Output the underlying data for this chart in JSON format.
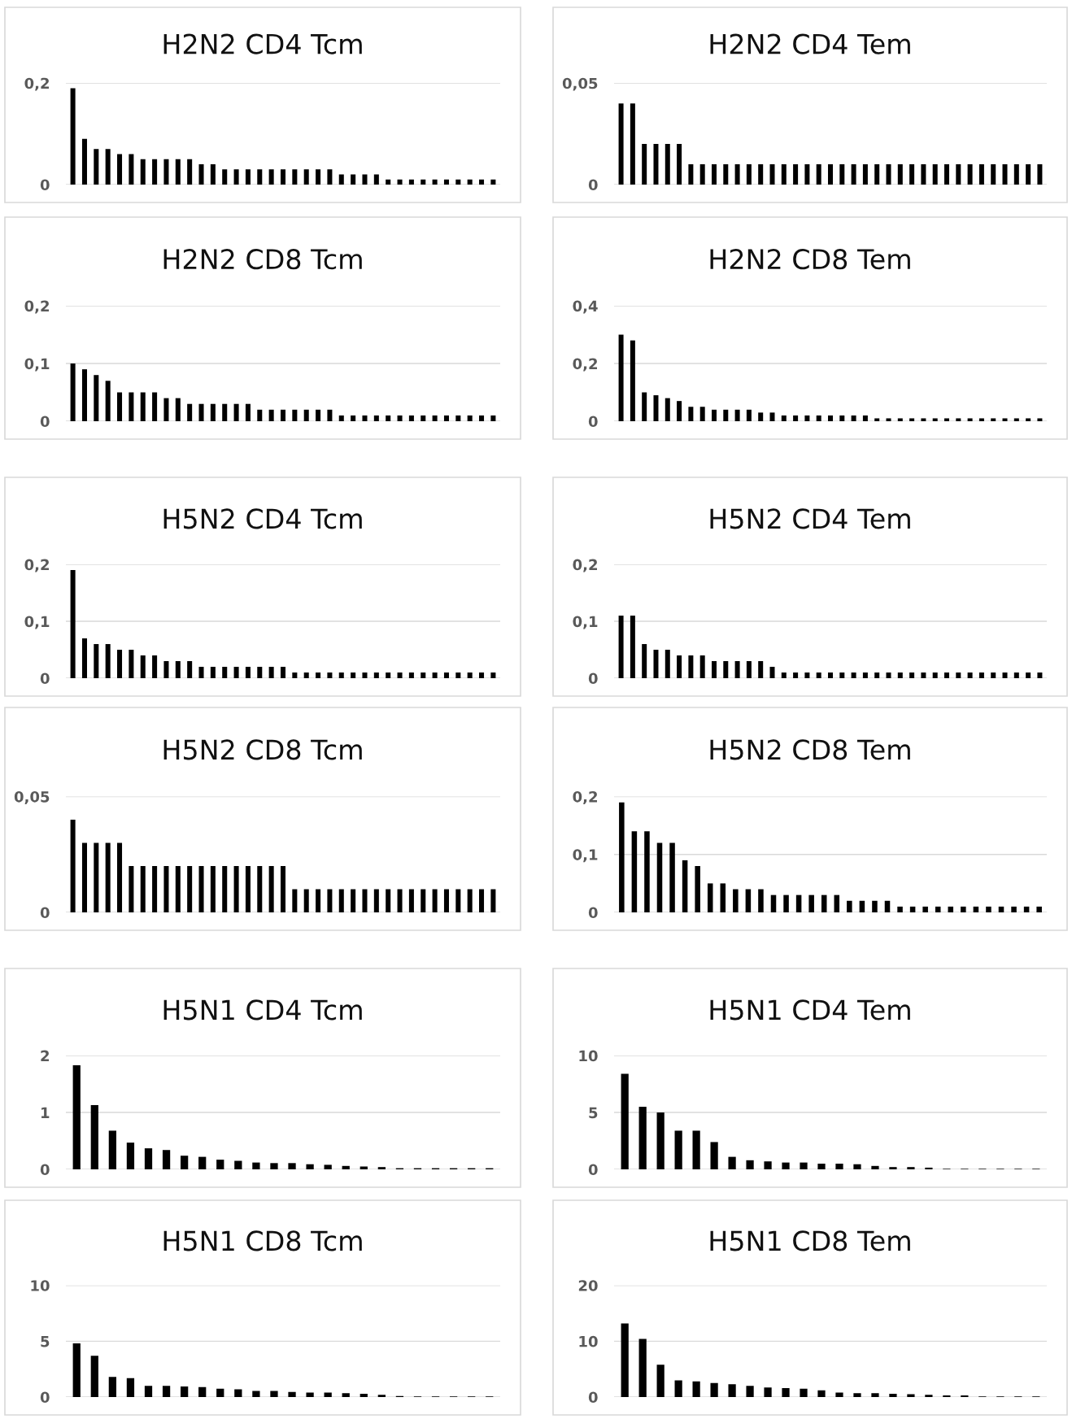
{
  "chart_data": [
    {
      "type": "bar",
      "title": "H2N2 CD4 Tcm",
      "color": "#000000",
      "grid": "y",
      "tick_labels": "y",
      "categories": [
        null,
        null,
        null,
        null,
        null,
        null,
        null,
        null,
        null,
        null,
        null,
        null,
        null,
        null,
        null,
        null,
        null,
        null,
        null,
        null,
        null,
        null,
        null,
        null,
        null,
        null,
        null,
        null,
        null,
        null,
        null,
        null,
        null,
        null,
        null,
        null,
        null
      ],
      "values": [
        0.19,
        0.09,
        0.07,
        0.07,
        0.06,
        0.06,
        0.05,
        0.05,
        0.05,
        0.05,
        0.05,
        0.04,
        0.04,
        0.03,
        0.03,
        0.03,
        0.03,
        0.03,
        0.03,
        0.03,
        0.03,
        0.03,
        0.03,
        0.02,
        0.02,
        0.02,
        0.02,
        0.01,
        0.01,
        0.01,
        0.01,
        0.01,
        0.01,
        0.01,
        0.01,
        0.01,
        0.01
      ],
      "ylim": [
        0,
        0.2
      ],
      "yticks": [
        0,
        {
          "value": 0.2,
          "label": "0,2"
        }
      ]
    },
    {
      "type": "bar",
      "title": "H2N2 CD4 Tem",
      "color": "#000000",
      "grid": "y",
      "tick_labels": "y",
      "categories": [
        null,
        null,
        null,
        null,
        null,
        null,
        null,
        null,
        null,
        null,
        null,
        null,
        null,
        null,
        null,
        null,
        null,
        null,
        null,
        null,
        null,
        null,
        null,
        null,
        null,
        null,
        null,
        null,
        null,
        null,
        null,
        null,
        null,
        null,
        null,
        null,
        null
      ],
      "values": [
        0.04,
        0.04,
        0.02,
        0.02,
        0.02,
        0.02,
        0.01,
        0.01,
        0.01,
        0.01,
        0.01,
        0.01,
        0.01,
        0.01,
        0.01,
        0.01,
        0.01,
        0.01,
        0.01,
        0.01,
        0.01,
        0.01,
        0.01,
        0.01,
        0.01,
        0.01,
        0.01,
        0.01,
        0.01,
        0.01,
        0.01,
        0.01,
        0.01,
        0.01,
        0.01,
        0.01,
        0.01
      ],
      "ylim": [
        0,
        0.05
      ],
      "yticks": [
        0,
        {
          "value": 0.05,
          "label": "0,05"
        }
      ]
    },
    {
      "type": "bar",
      "title": "H2N2 CD8 Tcm",
      "color": "#000000",
      "grid": "y",
      "tick_labels": "y",
      "categories": [
        null,
        null,
        null,
        null,
        null,
        null,
        null,
        null,
        null,
        null,
        null,
        null,
        null,
        null,
        null,
        null,
        null,
        null,
        null,
        null,
        null,
        null,
        null,
        null,
        null,
        null,
        null,
        null,
        null,
        null,
        null,
        null,
        null,
        null,
        null,
        null,
        null
      ],
      "values": [
        0.1,
        0.09,
        0.08,
        0.07,
        0.05,
        0.05,
        0.05,
        0.05,
        0.04,
        0.04,
        0.03,
        0.03,
        0.03,
        0.03,
        0.03,
        0.03,
        0.02,
        0.02,
        0.02,
        0.02,
        0.02,
        0.02,
        0.02,
        0.01,
        0.01,
        0.01,
        0.01,
        0.01,
        0.01,
        0.01,
        0.01,
        0.01,
        0.01,
        0.01,
        0.01,
        0.01,
        0.01
      ],
      "ylim": [
        0,
        0.2
      ],
      "yticks": [
        0,
        {
          "value": 0.1,
          "label": "0,1"
        },
        {
          "value": 0.2,
          "label": "0,2"
        }
      ]
    },
    {
      "type": "bar",
      "title": "H2N2 CD8 Tem",
      "color": "#000000",
      "grid": "y",
      "tick_labels": "y",
      "categories": [
        null,
        null,
        null,
        null,
        null,
        null,
        null,
        null,
        null,
        null,
        null,
        null,
        null,
        null,
        null,
        null,
        null,
        null,
        null,
        null,
        null,
        null,
        null,
        null,
        null,
        null,
        null,
        null,
        null,
        null,
        null,
        null,
        null,
        null,
        null,
        null,
        null
      ],
      "values": [
        0.3,
        0.28,
        0.1,
        0.09,
        0.08,
        0.07,
        0.05,
        0.05,
        0.04,
        0.04,
        0.04,
        0.04,
        0.03,
        0.03,
        0.02,
        0.02,
        0.02,
        0.02,
        0.02,
        0.02,
        0.02,
        0.02,
        0.01,
        0.01,
        0.01,
        0.01,
        0.01,
        0.01,
        0.01,
        0.01,
        0.01,
        0.01,
        0.01,
        0.01,
        0.01,
        0.01,
        0.01
      ],
      "ylim": [
        0,
        0.4
      ],
      "yticks": [
        0,
        {
          "value": 0.2,
          "label": "0,2"
        },
        {
          "value": 0.4,
          "label": "0,4"
        }
      ]
    },
    {
      "type": "bar",
      "title": "H5N2 CD4 Tcm",
      "color": "#000000",
      "grid": "y",
      "tick_labels": "y",
      "categories": [
        null,
        null,
        null,
        null,
        null,
        null,
        null,
        null,
        null,
        null,
        null,
        null,
        null,
        null,
        null,
        null,
        null,
        null,
        null,
        null,
        null,
        null,
        null,
        null,
        null,
        null,
        null,
        null,
        null,
        null,
        null,
        null,
        null,
        null,
        null,
        null,
        null
      ],
      "values": [
        0.19,
        0.07,
        0.06,
        0.06,
        0.05,
        0.05,
        0.04,
        0.04,
        0.03,
        0.03,
        0.03,
        0.02,
        0.02,
        0.02,
        0.02,
        0.02,
        0.02,
        0.02,
        0.02,
        0.01,
        0.01,
        0.01,
        0.01,
        0.01,
        0.01,
        0.01,
        0.01,
        0.01,
        0.01,
        0.01,
        0.01,
        0.01,
        0.01,
        0.01,
        0.01,
        0.01,
        0.01
      ],
      "ylim": [
        0,
        0.2
      ],
      "yticks": [
        0,
        {
          "value": 0.1,
          "label": "0,1"
        },
        {
          "value": 0.2,
          "label": "0,2"
        }
      ]
    },
    {
      "type": "bar",
      "title": "H5N2 CD4 Tem",
      "color": "#000000",
      "grid": "y",
      "tick_labels": "y",
      "categories": [
        null,
        null,
        null,
        null,
        null,
        null,
        null,
        null,
        null,
        null,
        null,
        null,
        null,
        null,
        null,
        null,
        null,
        null,
        null,
        null,
        null,
        null,
        null,
        null,
        null,
        null,
        null,
        null,
        null,
        null,
        null,
        null,
        null,
        null,
        null,
        null,
        null
      ],
      "values": [
        0.11,
        0.11,
        0.06,
        0.05,
        0.05,
        0.04,
        0.04,
        0.04,
        0.03,
        0.03,
        0.03,
        0.03,
        0.03,
        0.02,
        0.01,
        0.01,
        0.01,
        0.01,
        0.01,
        0.01,
        0.01,
        0.01,
        0.01,
        0.01,
        0.01,
        0.01,
        0.01,
        0.01,
        0.01,
        0.01,
        0.01,
        0.01,
        0.01,
        0.01,
        0.01,
        0.01,
        0.01
      ],
      "ylim": [
        0,
        0.2
      ],
      "yticks": [
        0,
        {
          "value": 0.1,
          "label": "0,1"
        },
        {
          "value": 0.2,
          "label": "0,2"
        }
      ]
    },
    {
      "type": "bar",
      "title": "H5N2 CD8 Tcm",
      "color": "#000000",
      "grid": "y",
      "tick_labels": "y",
      "categories": [
        null,
        null,
        null,
        null,
        null,
        null,
        null,
        null,
        null,
        null,
        null,
        null,
        null,
        null,
        null,
        null,
        null,
        null,
        null,
        null,
        null,
        null,
        null,
        null,
        null,
        null,
        null,
        null,
        null,
        null,
        null,
        null,
        null,
        null,
        null,
        null,
        null
      ],
      "values": [
        0.04,
        0.03,
        0.03,
        0.03,
        0.03,
        0.02,
        0.02,
        0.02,
        0.02,
        0.02,
        0.02,
        0.02,
        0.02,
        0.02,
        0.02,
        0.02,
        0.02,
        0.02,
        0.02,
        0.01,
        0.01,
        0.01,
        0.01,
        0.01,
        0.01,
        0.01,
        0.01,
        0.01,
        0.01,
        0.01,
        0.01,
        0.01,
        0.01,
        0.01,
        0.01,
        0.01,
        0.01
      ],
      "ylim": [
        0,
        0.05
      ],
      "yticks": [
        0,
        {
          "value": 0.05,
          "label": "0,05"
        }
      ]
    },
    {
      "type": "bar",
      "title": "H5N2 CD8 Tem",
      "color": "#000000",
      "grid": "y",
      "tick_labels": "y",
      "categories": [
        null,
        null,
        null,
        null,
        null,
        null,
        null,
        null,
        null,
        null,
        null,
        null,
        null,
        null,
        null,
        null,
        null,
        null,
        null,
        null,
        null,
        null,
        null,
        null,
        null,
        null,
        null,
        null,
        null,
        null,
        null,
        null,
        null,
        null
      ],
      "values": [
        0.19,
        0.14,
        0.14,
        0.12,
        0.12,
        0.09,
        0.08,
        0.05,
        0.05,
        0.04,
        0.04,
        0.04,
        0.03,
        0.03,
        0.03,
        0.03,
        0.03,
        0.03,
        0.02,
        0.02,
        0.02,
        0.02,
        0.01,
        0.01,
        0.01,
        0.01,
        0.01,
        0.01,
        0.01,
        0.01,
        0.01,
        0.01,
        0.01,
        0.01
      ],
      "ylim": [
        0,
        0.2
      ],
      "yticks": [
        0,
        {
          "value": 0.1,
          "label": "0,1"
        },
        {
          "value": 0.2,
          "label": "0,2"
        }
      ]
    },
    {
      "type": "bar",
      "title": "H5N1 CD4 Tcm",
      "color": "#000000",
      "grid": "y",
      "tick_labels": "y",
      "categories": [
        null,
        null,
        null,
        null,
        null,
        null,
        null,
        null,
        null,
        null,
        null,
        null,
        null,
        null,
        null,
        null,
        null,
        null,
        null,
        null,
        null,
        null,
        null,
        null
      ],
      "values": [
        1.83,
        1.13,
        0.68,
        0.47,
        0.37,
        0.34,
        0.24,
        0.22,
        0.17,
        0.15,
        0.12,
        0.11,
        0.11,
        0.09,
        0.08,
        0.06,
        0.05,
        0.04,
        0.02,
        0.02,
        0.02,
        0.02,
        0.02,
        0.02
      ],
      "ylim": [
        0,
        2
      ],
      "yticks": [
        0,
        1,
        2
      ]
    },
    {
      "type": "bar",
      "title": "H5N1 CD4 Tem",
      "color": "#000000",
      "grid": "y",
      "tick_labels": "y",
      "categories": [
        null,
        null,
        null,
        null,
        null,
        null,
        null,
        null,
        null,
        null,
        null,
        null,
        null,
        null,
        null,
        null,
        null,
        null,
        null,
        null,
        null,
        null,
        null,
        null
      ],
      "values": [
        8.4,
        5.5,
        5.0,
        3.4,
        3.4,
        2.4,
        1.1,
        0.8,
        0.7,
        0.6,
        0.6,
        0.5,
        0.5,
        0.45,
        0.3,
        0.2,
        0.2,
        0.15,
        0.05,
        0.05,
        0.05,
        0.05,
        0.05,
        0.05
      ],
      "ylim": [
        0,
        10
      ],
      "yticks": [
        0,
        5,
        10
      ]
    },
    {
      "type": "bar",
      "title": "H5N1 CD8 Tcm",
      "color": "#000000",
      "grid": "y",
      "tick_labels": "y",
      "categories": [
        null,
        null,
        null,
        null,
        null,
        null,
        null,
        null,
        null,
        null,
        null,
        null,
        null,
        null,
        null,
        null,
        null,
        null,
        null,
        null,
        null,
        null,
        null,
        null
      ],
      "values": [
        4.8,
        3.7,
        1.8,
        1.7,
        1.0,
        1.0,
        0.95,
        0.9,
        0.75,
        0.7,
        0.55,
        0.55,
        0.45,
        0.4,
        0.4,
        0.35,
        0.3,
        0.2,
        0.1,
        0.05,
        0.05,
        0.05,
        0.05,
        0.05
      ],
      "ylim": [
        0,
        10
      ],
      "yticks": [
        0,
        5,
        10
      ]
    },
    {
      "type": "bar",
      "title": "H5N1 CD8 Tem",
      "color": "#000000",
      "grid": "y",
      "tick_labels": "y",
      "categories": [
        null,
        null,
        null,
        null,
        null,
        null,
        null,
        null,
        null,
        null,
        null,
        null,
        null,
        null,
        null,
        null,
        null,
        null,
        null,
        null,
        null,
        null,
        null,
        null
      ],
      "values": [
        13.2,
        10.4,
        5.8,
        3.0,
        2.8,
        2.5,
        2.3,
        2.0,
        1.7,
        1.6,
        1.5,
        1.2,
        0.8,
        0.7,
        0.7,
        0.6,
        0.5,
        0.4,
        0.3,
        0.3,
        0.1,
        0.1,
        0.1,
        0.1
      ],
      "ylim": [
        0,
        20
      ],
      "yticks": [
        0,
        10,
        20
      ]
    }
  ]
}
